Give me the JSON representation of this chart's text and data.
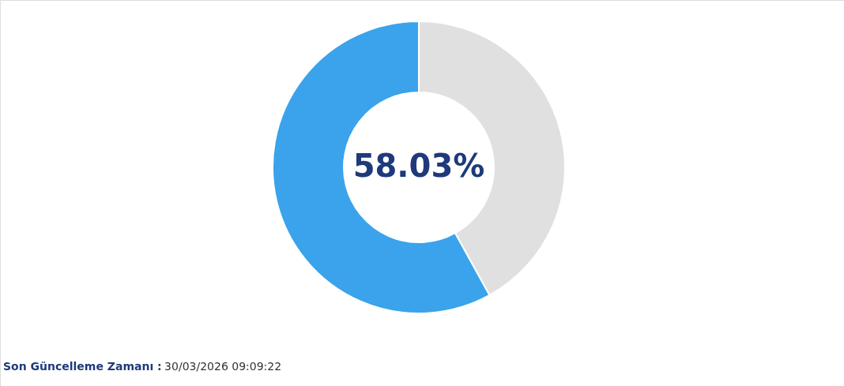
{
  "chart_data": {
    "type": "donut",
    "categories": [
      null,
      null
    ],
    "values": [
      41.97,
      58.03
    ],
    "colors": [
      "#e0e0e0",
      "#3aa3eb"
    ],
    "value_labels": [
      null,
      "58.03%"
    ],
    "annotations": [
      "Son Güncelleme Zamanı :",
      "30/03/2026 09:09:22"
    ]
  }
}
